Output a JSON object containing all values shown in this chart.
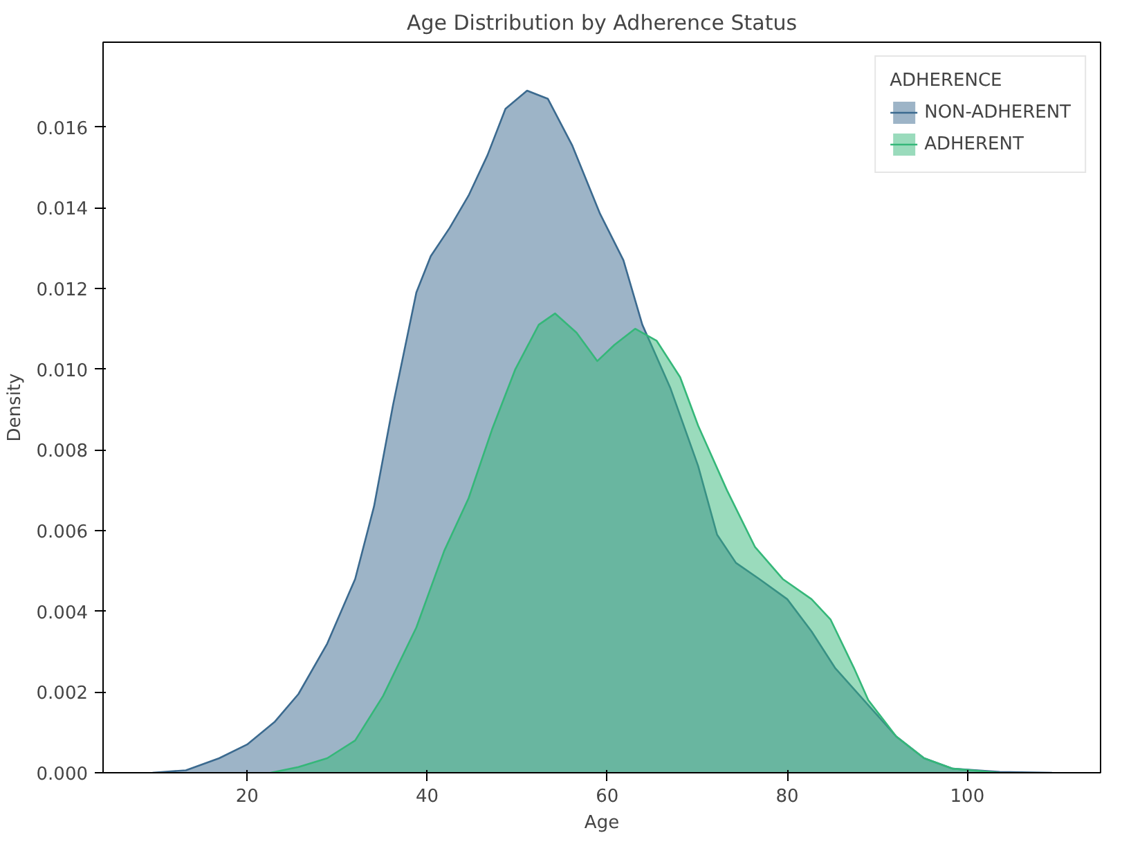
{
  "chart_data": {
    "type": "area",
    "title": "Age Distribution by Adherence Status",
    "xlabel": "Age",
    "ylabel": "Density",
    "legend_title": "ADHERENCE",
    "legend": "top right",
    "grid": false,
    "xlim": [
      4,
      114.8
    ],
    "xticks": [
      20,
      40,
      60,
      80,
      100
    ],
    "ylim": [
      0,
      0.0181
    ],
    "yticks": [
      {
        "value": 0,
        "label": "0.000"
      },
      {
        "value": 0.002,
        "label": "0.002"
      },
      {
        "value": 0.004,
        "label": "0.004"
      },
      {
        "value": 0.006,
        "label": "0.006"
      },
      {
        "value": 0.008,
        "label": "0.008"
      },
      {
        "value": 0.01,
        "label": "0.010"
      },
      {
        "value": 0.012,
        "label": "0.012"
      },
      {
        "value": 0.014,
        "label": "0.014"
      },
      {
        "value": 0.016,
        "label": "0.016"
      }
    ],
    "series": [
      {
        "name": "NON-ADHERENT",
        "color": "#3b6a8f",
        "x": [
          9.5,
          13.2,
          16.9,
          20.0,
          23.1,
          25.7,
          28.9,
          32.0,
          34.1,
          36.2,
          38.8,
          40.4,
          42.5,
          44.6,
          46.7,
          48.7,
          51.1,
          53.4,
          56.1,
          59.2,
          61.8,
          63.9,
          67.0,
          70.1,
          72.2,
          74.3,
          76.9,
          80.0,
          82.7,
          85.3,
          88.9,
          92.1,
          95.2,
          98.4,
          103.6,
          109.4
        ],
        "values": [
          0,
          6e-05,
          0.00036,
          0.0007,
          0.00127,
          0.00195,
          0.0032,
          0.0048,
          0.0066,
          0.0091,
          0.0119,
          0.0128,
          0.0135,
          0.0143,
          0.0153,
          0.01645,
          0.0169,
          0.0167,
          0.01555,
          0.01385,
          0.0127,
          0.0111,
          0.00954,
          0.0076,
          0.0059,
          0.0052,
          0.0048,
          0.0043,
          0.0035,
          0.0026,
          0.0017,
          0.0009,
          0.00036,
          0.0001,
          2e-05,
          0
        ]
      },
      {
        "name": "ADHERENT",
        "color": "#35b779",
        "x": [
          22.6,
          25.7,
          28.9,
          32.0,
          35.1,
          38.8,
          41.9,
          44.6,
          47.2,
          49.8,
          52.4,
          54.2,
          56.6,
          58.9,
          60.8,
          63.1,
          65.5,
          68.1,
          70.1,
          73.3,
          76.4,
          79.5,
          82.7,
          84.8,
          87.4,
          89.0,
          92.1,
          95.2,
          98.4,
          103.6
        ],
        "values": [
          0,
          0.00014,
          0.00036,
          0.0008,
          0.0019,
          0.0036,
          0.0055,
          0.0068,
          0.0085,
          0.01,
          0.0111,
          0.01138,
          0.0109,
          0.0102,
          0.0106,
          0.011,
          0.0107,
          0.0098,
          0.0086,
          0.007,
          0.0056,
          0.0048,
          0.0043,
          0.0038,
          0.0026,
          0.0018,
          0.0009,
          0.00036,
          0.0001,
          0
        ]
      }
    ]
  }
}
